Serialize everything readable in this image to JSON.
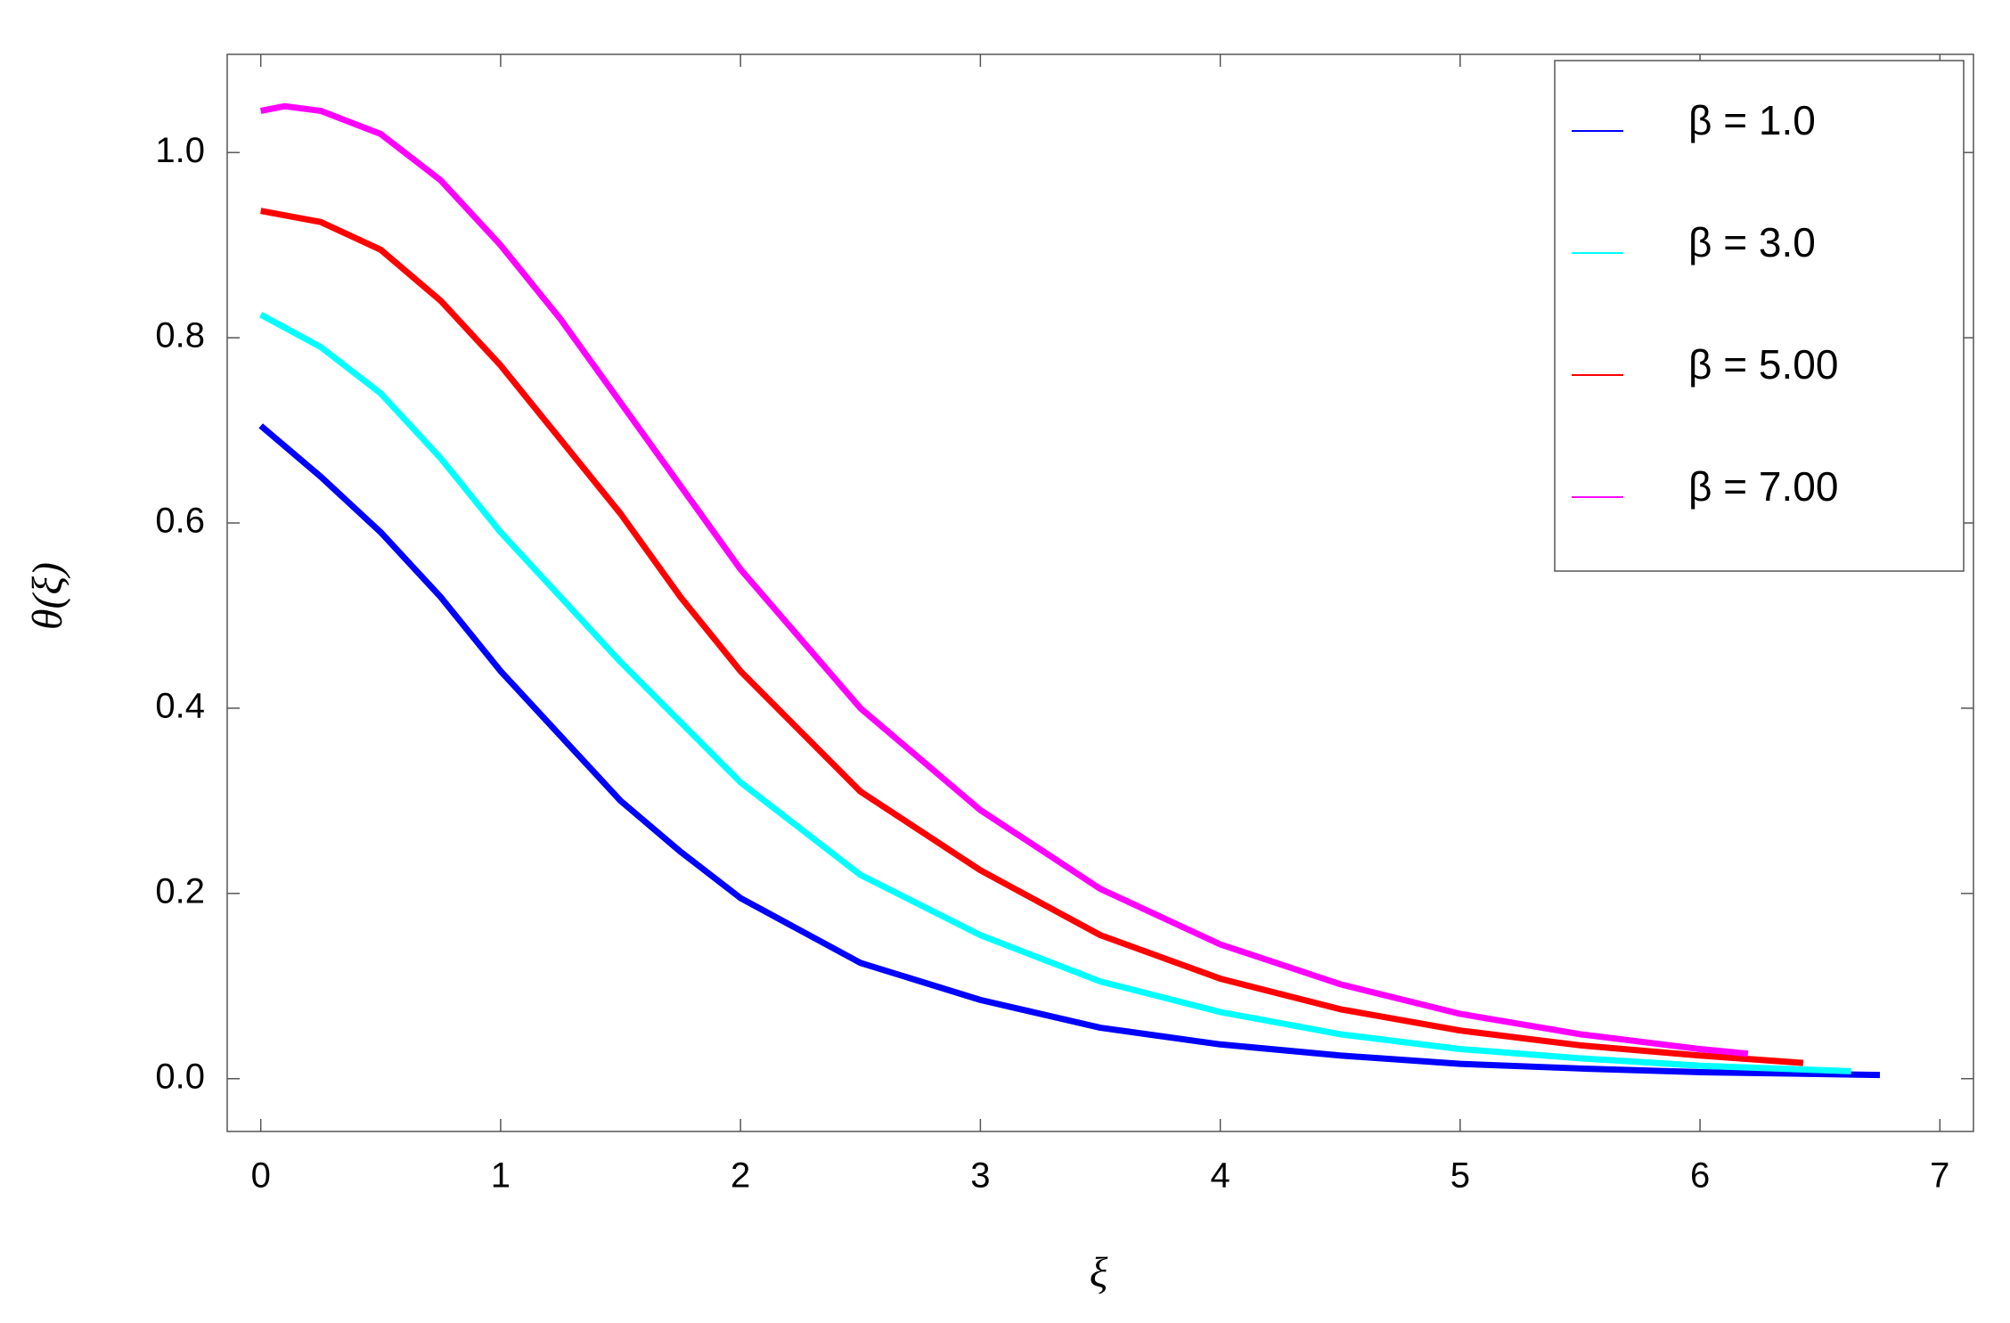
{
  "chart_data": {
    "type": "line",
    "x_label": "ξ",
    "y_label": "θ(ξ)",
    "xlim": [
      -0.14,
      7.14
    ],
    "ylim": [
      -0.057,
      1.106
    ],
    "xticks": [
      0,
      1,
      2,
      3,
      4,
      5,
      6,
      7
    ],
    "yticks": [
      {
        "value": 0,
        "label": "0.0"
      },
      0.2,
      0.4,
      0.6,
      0.8,
      {
        "value": 1,
        "label": "1.0"
      }
    ],
    "legend": "upper right",
    "series": [
      {
        "name": "β = 1.0",
        "color": "#0000ff",
        "x": [
          0,
          0.25,
          0.5,
          0.75,
          1,
          1.25,
          1.5,
          1.75,
          2,
          2.5,
          3,
          3.5,
          4,
          4.5,
          5,
          5.5,
          6,
          6.75
        ],
        "values": [
          0.705,
          0.65,
          0.59,
          0.52,
          0.44,
          0.37,
          0.3,
          0.245,
          0.195,
          0.125,
          0.085,
          0.055,
          0.037,
          0.025,
          0.016,
          0.011,
          0.007,
          0.004
        ]
      },
      {
        "name": "β = 3.0",
        "color": "#00ffff",
        "x": [
          0,
          0.25,
          0.5,
          0.75,
          1,
          1.25,
          1.5,
          1.75,
          2,
          2.5,
          3,
          3.5,
          4,
          4.5,
          5,
          5.5,
          6,
          6.63
        ],
        "values": [
          0.825,
          0.79,
          0.74,
          0.67,
          0.59,
          0.52,
          0.45,
          0.385,
          0.32,
          0.22,
          0.155,
          0.105,
          0.072,
          0.048,
          0.032,
          0.022,
          0.014,
          0.008
        ]
      },
      {
        "name": "β = 5.00",
        "color": "#ff0000",
        "x": [
          0,
          0.25,
          0.5,
          0.75,
          1,
          1.25,
          1.5,
          1.75,
          2,
          2.5,
          3,
          3.5,
          4,
          4.5,
          5,
          5.5,
          6,
          6.43
        ],
        "values": [
          0.937,
          0.925,
          0.895,
          0.84,
          0.77,
          0.69,
          0.61,
          0.52,
          0.44,
          0.31,
          0.225,
          0.155,
          0.108,
          0.075,
          0.052,
          0.036,
          0.025,
          0.017
        ]
      },
      {
        "name": "β = 7.00",
        "color": "#ff00ff",
        "x": [
          0,
          0.1,
          0.25,
          0.5,
          0.75,
          1,
          1.25,
          1.5,
          1.75,
          2,
          2.5,
          3,
          3.5,
          4,
          4.5,
          5,
          5.5,
          6,
          6.2
        ],
        "values": [
          1.045,
          1.05,
          1.045,
          1.02,
          0.97,
          0.9,
          0.82,
          0.73,
          0.64,
          0.55,
          0.4,
          0.29,
          0.205,
          0.145,
          0.102,
          0.07,
          0.048,
          0.032,
          0.027
        ]
      }
    ]
  }
}
